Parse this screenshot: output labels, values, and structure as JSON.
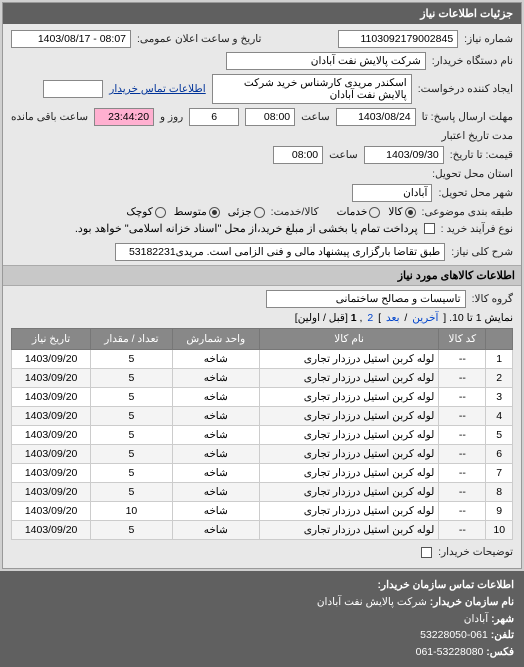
{
  "panel": {
    "title": "جزئیات اطلاعات نیاز"
  },
  "form": {
    "req_no_label": "شماره نیاز:",
    "req_no": "1103092179002845",
    "announce_label": "تاریخ و ساعت اعلان عمومی:",
    "announce": "08:07 - 1403/08/17",
    "org_label": "نام دستگاه خریدار:",
    "org": "شرکت پالایش نفت آبادان",
    "requester_label": "ایجاد کننده درخواست:",
    "requester": "اسکندر مریدی کارشناس خرید شرکت پالایش نفت آبادان",
    "contact_link": "اطلاعات تماس خریدار",
    "deadline_send_label": "مهلت ارسال پاسخ: تا",
    "deadline_date": "1403/08/24",
    "time_label": "ساعت",
    "deadline_time": "08:00",
    "days_left": "6",
    "days_and_label": "روز و",
    "time_left": "23:44:20",
    "time_remain_label": "ساعت باقی مانده",
    "price_until_label": "قیمت: تا تاریخ:",
    "price_until_date": "1403/09/30",
    "price_until_time": "08:00",
    "credit_date_label": "مدت تاریخ اعتبار",
    "location_label": "استان محل تحویل:",
    "city_label": "شهر محل تحویل:",
    "city": "آبادان",
    "packing_label": "طبقه بندی موضوعی:",
    "pack_opts": {
      "kala": "کالا",
      "khadamat": "خدمات"
    },
    "kala_opt_label": "کالا/خدمت:",
    "size_opts": {
      "small": "کوچک",
      "medium": "متوسط",
      "large": "جزئی"
    },
    "buy_type_label": "نوع فرآیند خرید :",
    "buy_note": "پرداخت تمام یا بخشی از مبلغ خرید،از محل \"اسناد خزانه اسلامی\" خواهد بود.",
    "desc_label": "شرح کلی نیاز:",
    "desc": "طبق تقاضا بارگزاری پیشنهاد مالی و فنی الزامی است. مریدی53182231"
  },
  "goods": {
    "section_title": "اطلاعات کالاهای مورد نیاز",
    "group_label": "گروه کالا:",
    "group": "تاسیسات و مصالح ساختمانی",
    "pager_text": "نمایش 1 تا 10.",
    "pager_links": {
      "last": "آخرین",
      "next": "بعد",
      "p1": "1",
      "p2": "2",
      "first_prev": "قبل / اولین"
    },
    "columns": [
      "",
      "کد کالا",
      "نام کالا",
      "واحد شمارش",
      "تعداد / مقدار",
      "تاریخ نیاز"
    ],
    "rows": [
      [
        "1",
        "--",
        "لوله کربن استیل درزدار تجاری",
        "شاخه",
        "5",
        "1403/09/20"
      ],
      [
        "2",
        "--",
        "لوله کربن استیل درزدار تجاری",
        "شاخه",
        "5",
        "1403/09/20"
      ],
      [
        "3",
        "--",
        "لوله کربن استیل درزدار تجاری",
        "شاخه",
        "5",
        "1403/09/20"
      ],
      [
        "4",
        "--",
        "لوله کربن استیل درزدار تجاری",
        "شاخه",
        "5",
        "1403/09/20"
      ],
      [
        "5",
        "--",
        "لوله کربن استیل درزدار تجاری",
        "شاخه",
        "5",
        "1403/09/20"
      ],
      [
        "6",
        "--",
        "لوله کربن استیل درزدار تجاری",
        "شاخه",
        "5",
        "1403/09/20"
      ],
      [
        "7",
        "--",
        "لوله کربن استیل درزدار تجاری",
        "شاخه",
        "5",
        "1403/09/20"
      ],
      [
        "8",
        "--",
        "لوله کربن استیل درزدار تجاری",
        "شاخه",
        "5",
        "1403/09/20"
      ],
      [
        "9",
        "--",
        "لوله کربن استیل درزدار تجاری",
        "شاخه",
        "10",
        "1403/09/20"
      ],
      [
        "10",
        "--",
        "لوله کربن استیل درزدار تجاری",
        "شاخه",
        "5",
        "1403/09/20"
      ]
    ],
    "buyer_explain_label": "توضیحات خریدار:"
  },
  "footer": {
    "title": "اطلاعات تماس سازمان خریدار:",
    "org_label": "نام سازمان خریدار:",
    "org": "شرکت پالایش نفت آبادان",
    "city_label": "شهر:",
    "city": "آبادان",
    "tel_label": "تلفن:",
    "tel": "061-53228050",
    "fax_label": "فکس:",
    "fax": "53228080-061"
  }
}
